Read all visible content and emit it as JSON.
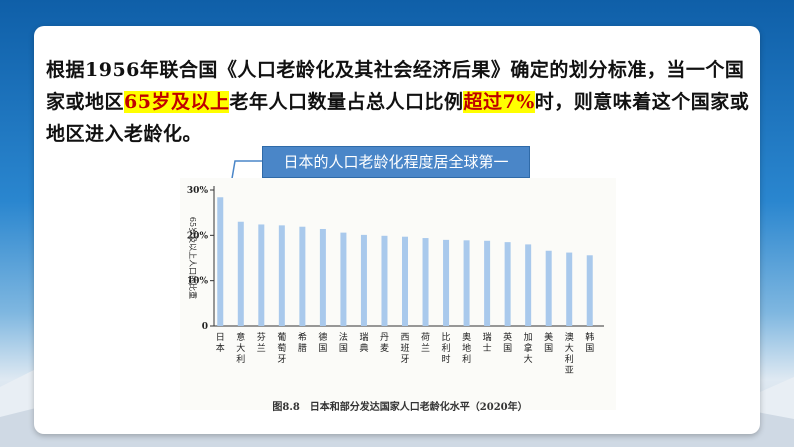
{
  "paragraph": {
    "part1": "根据1956年联合国《人口老龄化及其社会经济后果》确定的划分标准，当一个国家或地区",
    "hl1": "65岁及以上",
    "part2": "老年人口数量占总人口比例",
    "hl2": "超过7%",
    "part3": "时，则意味着这个国家或地区进入老龄化。"
  },
  "callout": {
    "text": "日本的人口老龄化程度居全球第一"
  },
  "colors": {
    "accent": "#4a86c8",
    "highlight": "#ffff00",
    "highlight_text": "#c00000",
    "bar": "#a9c9ec"
  },
  "chart_data": {
    "type": "bar",
    "title": "图8.8　日本和部分发达国家人口老龄化水平（2020年）",
    "ylabel": "65岁及以上人口的比重",
    "ylim": [
      0,
      30
    ],
    "yticks": [
      "0",
      "10%",
      "20%",
      "30%"
    ],
    "categories": [
      "日本",
      "意大利",
      "芬兰",
      "葡萄牙",
      "希腊",
      "德国",
      "法国",
      "瑞典",
      "丹麦",
      "西班牙",
      "荷兰",
      "比利时",
      "奥地利",
      "瑞士",
      "英国",
      "加拿大",
      "美国",
      "澳大利亚",
      "韩国"
    ],
    "values": [
      28.4,
      23.0,
      22.4,
      22.2,
      21.9,
      21.4,
      20.6,
      20.1,
      19.9,
      19.7,
      19.4,
      19.0,
      18.9,
      18.8,
      18.5,
      18.0,
      16.6,
      16.2,
      15.6
    ]
  }
}
